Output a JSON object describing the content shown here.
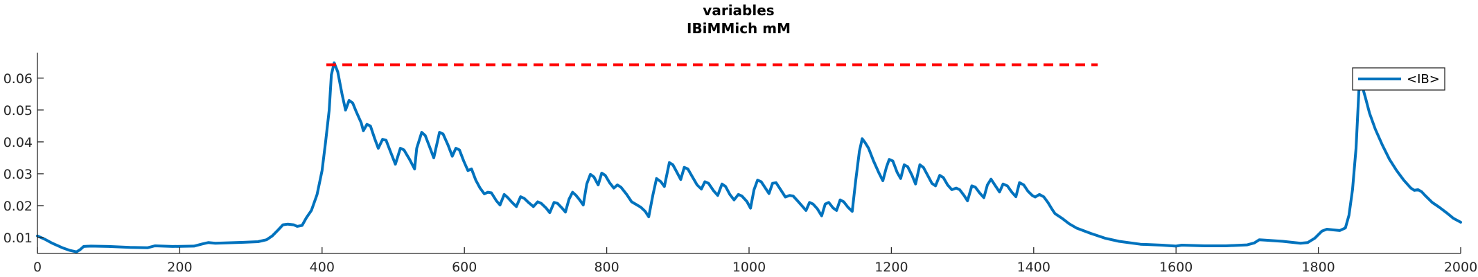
{
  "chart_data": {
    "type": "line",
    "title": "variables",
    "subtitle": "IBiMMich mM",
    "xlabel": "",
    "ylabel": "",
    "xlim": [
      0,
      2000
    ],
    "ylim": [
      0.005,
      0.068
    ],
    "x_ticks": [
      0,
      200,
      400,
      600,
      800,
      1000,
      1200,
      1400,
      1600,
      1800,
      2000
    ],
    "y_ticks": [
      0.01,
      0.02,
      0.03,
      0.04,
      0.05,
      0.06
    ],
    "y_tick_labels": [
      "0.01",
      "0.02",
      "0.03",
      "0.04",
      "0.05",
      "0.06"
    ],
    "grid": false,
    "legend": {
      "placement": "top-right",
      "entries": [
        "<IB>"
      ]
    },
    "series": [
      {
        "name": "<IB>",
        "color": "#0072BD",
        "points": [
          [
            0,
            0.0105
          ],
          [
            10,
            0.0095
          ],
          [
            20,
            0.0083
          ],
          [
            35,
            0.0068
          ],
          [
            45,
            0.006
          ],
          [
            55,
            0.0055
          ],
          [
            60,
            0.0062
          ],
          [
            65,
            0.0072
          ],
          [
            75,
            0.0073
          ],
          [
            100,
            0.0072
          ],
          [
            130,
            0.0069
          ],
          [
            155,
            0.0068
          ],
          [
            165,
            0.0074
          ],
          [
            190,
            0.0072
          ],
          [
            220,
            0.0073
          ],
          [
            232,
            0.008
          ],
          [
            240,
            0.0084
          ],
          [
            250,
            0.0082
          ],
          [
            290,
            0.0085
          ],
          [
            310,
            0.0087
          ],
          [
            322,
            0.0093
          ],
          [
            330,
            0.0105
          ],
          [
            338,
            0.0123
          ],
          [
            345,
            0.014
          ],
          [
            352,
            0.0142
          ],
          [
            360,
            0.014
          ],
          [
            365,
            0.0135
          ],
          [
            372,
            0.0138
          ],
          [
            378,
            0.0162
          ],
          [
            385,
            0.0185
          ],
          [
            393,
            0.0235
          ],
          [
            400,
            0.031
          ],
          [
            405,
            0.04
          ],
          [
            410,
            0.05
          ],
          [
            413,
            0.061
          ],
          [
            417,
            0.0648
          ],
          [
            422,
            0.062
          ],
          [
            428,
            0.055
          ],
          [
            433,
            0.05
          ],
          [
            438,
            0.053
          ],
          [
            443,
            0.0522
          ],
          [
            448,
            0.0495
          ],
          [
            455,
            0.046
          ],
          [
            458,
            0.0435
          ],
          [
            463,
            0.0455
          ],
          [
            468,
            0.045
          ],
          [
            474,
            0.041
          ],
          [
            479,
            0.038
          ],
          [
            485,
            0.0408
          ],
          [
            490,
            0.0405
          ],
          [
            496,
            0.037
          ],
          [
            503,
            0.033
          ],
          [
            510,
            0.038
          ],
          [
            515,
            0.0375
          ],
          [
            523,
            0.0345
          ],
          [
            530,
            0.0315
          ],
          [
            533,
            0.038
          ],
          [
            540,
            0.043
          ],
          [
            545,
            0.042
          ],
          [
            551,
            0.0385
          ],
          [
            557,
            0.035
          ],
          [
            565,
            0.043
          ],
          [
            570,
            0.0425
          ],
          [
            577,
            0.039
          ],
          [
            583,
            0.0355
          ],
          [
            588,
            0.038
          ],
          [
            593,
            0.0375
          ],
          [
            599,
            0.034
          ],
          [
            605,
            0.031
          ],
          [
            610,
            0.0315
          ],
          [
            616,
            0.028
          ],
          [
            622,
            0.0255
          ],
          [
            628,
            0.0237
          ],
          [
            633,
            0.0242
          ],
          [
            638,
            0.024
          ],
          [
            645,
            0.0215
          ],
          [
            650,
            0.0202
          ],
          [
            656,
            0.0235
          ],
          [
            661,
            0.0225
          ],
          [
            667,
            0.021
          ],
          [
            673,
            0.0197
          ],
          [
            679,
            0.0228
          ],
          [
            684,
            0.0223
          ],
          [
            690,
            0.021
          ],
          [
            697,
            0.0197
          ],
          [
            703,
            0.0212
          ],
          [
            708,
            0.0207
          ],
          [
            715,
            0.0192
          ],
          [
            720,
            0.0178
          ],
          [
            726,
            0.021
          ],
          [
            731,
            0.0207
          ],
          [
            737,
            0.0193
          ],
          [
            742,
            0.018
          ],
          [
            747,
            0.022
          ],
          [
            752,
            0.0242
          ],
          [
            757,
            0.0232
          ],
          [
            762,
            0.0218
          ],
          [
            767,
            0.0202
          ],
          [
            772,
            0.0268
          ],
          [
            777,
            0.0298
          ],
          [
            782,
            0.029
          ],
          [
            788,
            0.0265
          ],
          [
            793,
            0.0302
          ],
          [
            798,
            0.0295
          ],
          [
            804,
            0.0272
          ],
          [
            810,
            0.0255
          ],
          [
            815,
            0.0265
          ],
          [
            820,
            0.0258
          ],
          [
            828,
            0.0235
          ],
          [
            835,
            0.0212
          ],
          [
            842,
            0.0203
          ],
          [
            848,
            0.0195
          ],
          [
            854,
            0.0182
          ],
          [
            859,
            0.0165
          ],
          [
            865,
            0.0235
          ],
          [
            870,
            0.0285
          ],
          [
            876,
            0.0275
          ],
          [
            881,
            0.026
          ],
          [
            888,
            0.0335
          ],
          [
            893,
            0.0328
          ],
          [
            899,
            0.0303
          ],
          [
            904,
            0.0282
          ],
          [
            909,
            0.032
          ],
          [
            914,
            0.0315
          ],
          [
            920,
            0.0292
          ],
          [
            927,
            0.0265
          ],
          [
            933,
            0.0252
          ],
          [
            938,
            0.0275
          ],
          [
            943,
            0.027
          ],
          [
            950,
            0.0247
          ],
          [
            956,
            0.0232
          ],
          [
            962,
            0.0268
          ],
          [
            967,
            0.026
          ],
          [
            973,
            0.0235
          ],
          [
            979,
            0.0218
          ],
          [
            985,
            0.0235
          ],
          [
            990,
            0.023
          ],
          [
            997,
            0.0213
          ],
          [
            1002,
            0.0192
          ],
          [
            1007,
            0.025
          ],
          [
            1012,
            0.028
          ],
          [
            1017,
            0.0275
          ],
          [
            1023,
            0.0255
          ],
          [
            1028,
            0.0238
          ],
          [
            1033,
            0.027
          ],
          [
            1038,
            0.0272
          ],
          [
            1045,
            0.0248
          ],
          [
            1051,
            0.0227
          ],
          [
            1057,
            0.0232
          ],
          [
            1062,
            0.023
          ],
          [
            1069,
            0.0213
          ],
          [
            1075,
            0.0198
          ],
          [
            1080,
            0.0185
          ],
          [
            1085,
            0.021
          ],
          [
            1090,
            0.0205
          ],
          [
            1096,
            0.019
          ],
          [
            1102,
            0.0168
          ],
          [
            1107,
            0.0205
          ],
          [
            1112,
            0.021
          ],
          [
            1118,
            0.0193
          ],
          [
            1123,
            0.0185
          ],
          [
            1128,
            0.0218
          ],
          [
            1133,
            0.0212
          ],
          [
            1139,
            0.0195
          ],
          [
            1145,
            0.0182
          ],
          [
            1150,
            0.028
          ],
          [
            1155,
            0.037
          ],
          [
            1159,
            0.041
          ],
          [
            1163,
            0.0398
          ],
          [
            1168,
            0.038
          ],
          [
            1175,
            0.034
          ],
          [
            1182,
            0.0305
          ],
          [
            1188,
            0.0278
          ],
          [
            1193,
            0.032
          ],
          [
            1197,
            0.0345
          ],
          [
            1202,
            0.034
          ],
          [
            1208,
            0.0305
          ],
          [
            1213,
            0.0285
          ],
          [
            1218,
            0.0328
          ],
          [
            1223,
            0.0322
          ],
          [
            1229,
            0.0295
          ],
          [
            1234,
            0.0268
          ],
          [
            1240,
            0.0328
          ],
          [
            1245,
            0.032
          ],
          [
            1251,
            0.0295
          ],
          [
            1257,
            0.027
          ],
          [
            1262,
            0.0262
          ],
          [
            1268,
            0.0295
          ],
          [
            1273,
            0.0288
          ],
          [
            1279,
            0.0265
          ],
          [
            1285,
            0.025
          ],
          [
            1291,
            0.0255
          ],
          [
            1296,
            0.025
          ],
          [
            1302,
            0.0232
          ],
          [
            1307,
            0.0215
          ],
          [
            1313,
            0.0262
          ],
          [
            1318,
            0.0258
          ],
          [
            1324,
            0.024
          ],
          [
            1330,
            0.0225
          ],
          [
            1335,
            0.0265
          ],
          [
            1340,
            0.0283
          ],
          [
            1346,
            0.0263
          ],
          [
            1352,
            0.0243
          ],
          [
            1357,
            0.0268
          ],
          [
            1363,
            0.0262
          ],
          [
            1369,
            0.0243
          ],
          [
            1375,
            0.0228
          ],
          [
            1380,
            0.0272
          ],
          [
            1386,
            0.0265
          ],
          [
            1392,
            0.0245
          ],
          [
            1398,
            0.0232
          ],
          [
            1402,
            0.0227
          ],
          [
            1408,
            0.0235
          ],
          [
            1414,
            0.0228
          ],
          [
            1420,
            0.021
          ],
          [
            1426,
            0.0188
          ],
          [
            1430,
            0.0175
          ],
          [
            1440,
            0.016
          ],
          [
            1450,
            0.0143
          ],
          [
            1460,
            0.013
          ],
          [
            1480,
            0.0113
          ],
          [
            1500,
            0.0098
          ],
          [
            1520,
            0.0088
          ],
          [
            1550,
            0.0079
          ],
          [
            1580,
            0.0076
          ],
          [
            1600,
            0.0073
          ],
          [
            1608,
            0.0076
          ],
          [
            1640,
            0.0074
          ],
          [
            1670,
            0.0074
          ],
          [
            1700,
            0.0077
          ],
          [
            1710,
            0.0083
          ],
          [
            1717,
            0.0093
          ],
          [
            1725,
            0.0092
          ],
          [
            1750,
            0.0088
          ],
          [
            1775,
            0.0082
          ],
          [
            1785,
            0.0084
          ],
          [
            1795,
            0.0098
          ],
          [
            1805,
            0.012
          ],
          [
            1812,
            0.0126
          ],
          [
            1820,
            0.0124
          ],
          [
            1830,
            0.0122
          ],
          [
            1838,
            0.013
          ],
          [
            1843,
            0.017
          ],
          [
            1848,
            0.025
          ],
          [
            1853,
            0.038
          ],
          [
            1857,
            0.056
          ],
          [
            1861,
            0.058
          ],
          [
            1866,
            0.054
          ],
          [
            1872,
            0.049
          ],
          [
            1880,
            0.044
          ],
          [
            1890,
            0.039
          ],
          [
            1900,
            0.0345
          ],
          [
            1910,
            0.031
          ],
          [
            1920,
            0.028
          ],
          [
            1930,
            0.0255
          ],
          [
            1935,
            0.0248
          ],
          [
            1940,
            0.025
          ],
          [
            1945,
            0.0244
          ],
          [
            1950,
            0.0232
          ],
          [
            1960,
            0.021
          ],
          [
            1970,
            0.0195
          ],
          [
            1980,
            0.0178
          ],
          [
            1990,
            0.016
          ],
          [
            2000,
            0.0148
          ],
          [
            2010,
            0.014
          ],
          [
            2015,
            0.0138
          ]
        ]
      },
      {
        "name": "",
        "color": "#FF0000",
        "style": "dashed",
        "points": [
          [
            406,
            0.0642
          ],
          [
            1490,
            0.0642
          ]
        ]
      }
    ]
  }
}
